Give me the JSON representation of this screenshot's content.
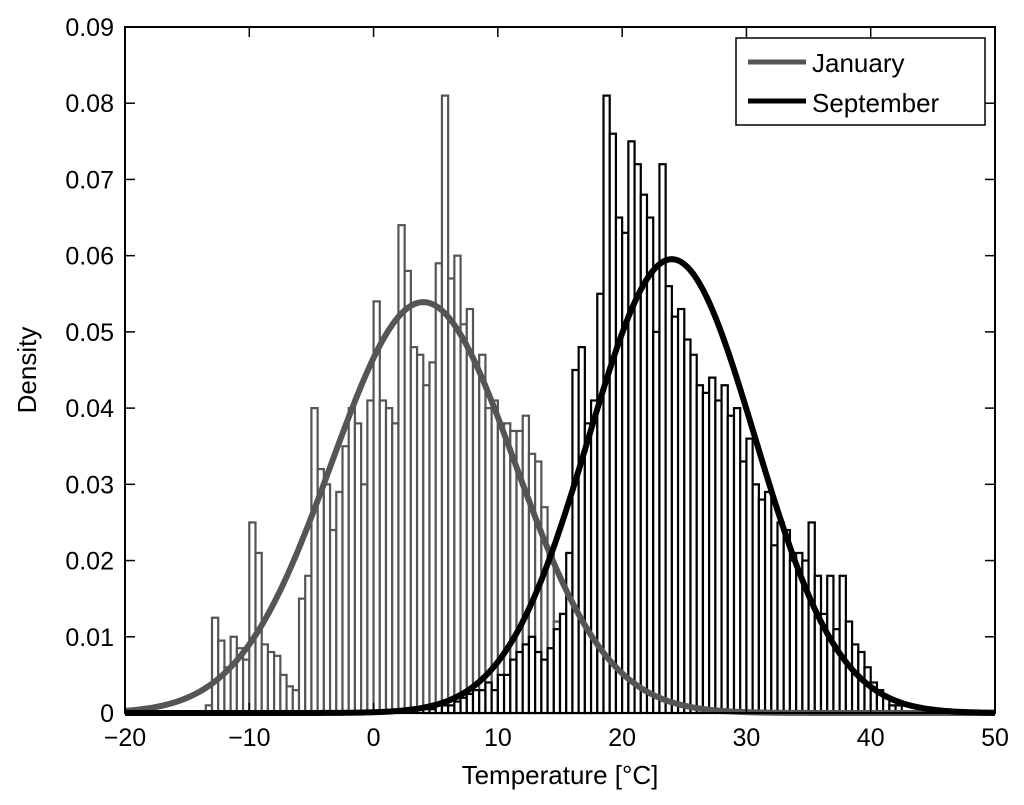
{
  "chart_data": {
    "type": "bar",
    "xlabel": "Temperature [°C]",
    "ylabel": "Density",
    "xlim": [
      -20,
      50
    ],
    "ylim": [
      0,
      0.09
    ],
    "xticks": [
      "−20",
      "−10",
      "0",
      "10",
      "20",
      "30",
      "40",
      "50"
    ],
    "yticks": [
      "0",
      "0.01",
      "0.02",
      "0.03",
      "0.04",
      "0.05",
      "0.06",
      "0.07",
      "0.08",
      "0.09"
    ],
    "grid": false,
    "legend_position": "top-right",
    "bin_width": 0.5,
    "series": [
      {
        "name": "January",
        "color": "#555555",
        "bins": [
          [
            -13.5,
            0.001
          ],
          [
            -13.0,
            0.0125
          ],
          [
            -12.5,
            0.0095
          ],
          [
            -12.0,
            0.006
          ],
          [
            -11.5,
            0.01
          ],
          [
            -11.0,
            0.0085
          ],
          [
            -10.5,
            0.007
          ],
          [
            -10.0,
            0.025
          ],
          [
            -9.5,
            0.021
          ],
          [
            -9.0,
            0.009
          ],
          [
            -8.5,
            0.008
          ],
          [
            -8.0,
            0.0075
          ],
          [
            -7.5,
            0.005
          ],
          [
            -7.0,
            0.0035
          ],
          [
            -6.5,
            0.003
          ],
          [
            -6.0,
            0.015
          ],
          [
            -5.5,
            0.018
          ],
          [
            -5.0,
            0.04
          ],
          [
            -4.5,
            0.032
          ],
          [
            -4.0,
            0.03
          ],
          [
            -3.5,
            0.024
          ],
          [
            -3.0,
            0.029
          ],
          [
            -2.5,
            0.035
          ],
          [
            -2.0,
            0.04
          ],
          [
            -1.5,
            0.038
          ],
          [
            -1.0,
            0.03
          ],
          [
            -0.5,
            0.041
          ],
          [
            0.0,
            0.054
          ],
          [
            0.5,
            0.041
          ],
          [
            1.0,
            0.04
          ],
          [
            1.5,
            0.038
          ],
          [
            2.0,
            0.064
          ],
          [
            2.5,
            0.058
          ],
          [
            3.0,
            0.048
          ],
          [
            3.5,
            0.047
          ],
          [
            4.0,
            0.043
          ],
          [
            4.5,
            0.046
          ],
          [
            5.0,
            0.059
          ],
          [
            5.5,
            0.081
          ],
          [
            6.0,
            0.057
          ],
          [
            6.5,
            0.06
          ],
          [
            7.0,
            0.051
          ],
          [
            7.5,
            0.053
          ],
          [
            8.0,
            0.046
          ],
          [
            8.5,
            0.047
          ],
          [
            9.0,
            0.04
          ],
          [
            9.5,
            0.041
          ],
          [
            10.0,
            0.038
          ],
          [
            10.5,
            0.038
          ],
          [
            11.0,
            0.037
          ],
          [
            11.5,
            0.037
          ],
          [
            12.0,
            0.039
          ],
          [
            12.5,
            0.034
          ],
          [
            13.0,
            0.033
          ],
          [
            13.5,
            0.027
          ],
          [
            14.0,
            0.021
          ],
          [
            14.5,
            0.012
          ],
          [
            15.0,
            0.013
          ],
          [
            15.5,
            0.01
          ],
          [
            16.0,
            0.008
          ],
          [
            16.5,
            0.005
          ],
          [
            17.0,
            0.004
          ],
          [
            17.5,
            0.003
          ],
          [
            18.0,
            0.002
          ],
          [
            18.5,
            0.001
          ]
        ],
        "fit": {
          "mean": 4,
          "std": 7.4
        }
      },
      {
        "name": "September",
        "color": "#000000",
        "bins": [
          [
            4.0,
            0.0005
          ],
          [
            4.5,
            0.0005
          ],
          [
            5.0,
            0.001
          ],
          [
            5.5,
            0.001
          ],
          [
            6.0,
            0.001
          ],
          [
            6.5,
            0.0015
          ],
          [
            7.0,
            0.002
          ],
          [
            7.5,
            0.0025
          ],
          [
            8.0,
            0.003
          ],
          [
            8.5,
            0.003
          ],
          [
            9.0,
            0.004
          ],
          [
            9.5,
            0.003
          ],
          [
            10.0,
            0.005
          ],
          [
            10.5,
            0.005
          ],
          [
            11.0,
            0.007
          ],
          [
            11.5,
            0.008
          ],
          [
            12.0,
            0.009
          ],
          [
            12.5,
            0.01
          ],
          [
            13.0,
            0.008
          ],
          [
            13.5,
            0.007
          ],
          [
            14.0,
            0.0085
          ],
          [
            14.5,
            0.011
          ],
          [
            15.0,
            0.013
          ],
          [
            15.5,
            0.021
          ],
          [
            16.0,
            0.045
          ],
          [
            16.5,
            0.048
          ],
          [
            17.0,
            0.038
          ],
          [
            17.5,
            0.041
          ],
          [
            18.0,
            0.055
          ],
          [
            18.5,
            0.081
          ],
          [
            19.0,
            0.076
          ],
          [
            19.5,
            0.065
          ],
          [
            20.0,
            0.063
          ],
          [
            20.5,
            0.075
          ],
          [
            21.0,
            0.072
          ],
          [
            21.5,
            0.068
          ],
          [
            22.0,
            0.065
          ],
          [
            22.5,
            0.05
          ],
          [
            23.0,
            0.072
          ],
          [
            23.5,
            0.056
          ],
          [
            24.0,
            0.052
          ],
          [
            24.5,
            0.053
          ],
          [
            25.0,
            0.049
          ],
          [
            25.5,
            0.047
          ],
          [
            26.0,
            0.043
          ],
          [
            26.5,
            0.042
          ],
          [
            27.0,
            0.044
          ],
          [
            27.5,
            0.041
          ],
          [
            28.0,
            0.043
          ],
          [
            28.5,
            0.039
          ],
          [
            29.0,
            0.04
          ],
          [
            29.5,
            0.033
          ],
          [
            30.0,
            0.036
          ],
          [
            30.5,
            0.03
          ],
          [
            31.0,
            0.028
          ],
          [
            31.5,
            0.029
          ],
          [
            32.0,
            0.022
          ],
          [
            32.5,
            0.025
          ],
          [
            33.0,
            0.024
          ],
          [
            33.5,
            0.02
          ],
          [
            34.0,
            0.021
          ],
          [
            34.5,
            0.02
          ],
          [
            35.0,
            0.025
          ],
          [
            35.5,
            0.018
          ],
          [
            36.0,
            0.013
          ],
          [
            36.5,
            0.018
          ],
          [
            37.0,
            0.011
          ],
          [
            37.5,
            0.018
          ],
          [
            38.0,
            0.012
          ],
          [
            38.5,
            0.009
          ],
          [
            39.0,
            0.008
          ],
          [
            39.5,
            0.006
          ],
          [
            40.0,
            0.004
          ],
          [
            40.5,
            0.003
          ],
          [
            41.0,
            0.002
          ],
          [
            41.5,
            0.001
          ],
          [
            42.0,
            0.001
          ]
        ],
        "fit": {
          "mean": 24,
          "std": 6.7
        }
      }
    ]
  }
}
